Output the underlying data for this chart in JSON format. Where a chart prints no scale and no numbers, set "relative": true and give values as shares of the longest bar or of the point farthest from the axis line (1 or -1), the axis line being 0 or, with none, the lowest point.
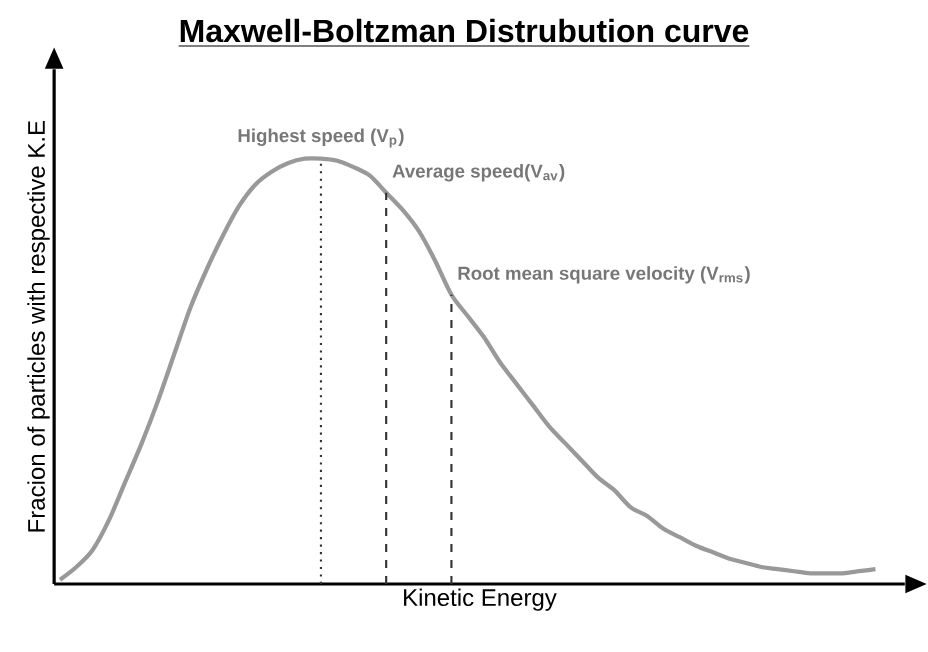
{
  "chart_data": {
    "type": "line",
    "title": "Maxwell-Boltzman Distrubution curve",
    "xlabel": "Kinetic Energy",
    "ylabel": "Fracion of particles with respective K.E",
    "relative": true,
    "categories": [
      null,
      null,
      null,
      null,
      null,
      null,
      null,
      null,
      null,
      null,
      null,
      null,
      null,
      null,
      null,
      null,
      null,
      null,
      null,
      null,
      null,
      null,
      null,
      null,
      null,
      null,
      null,
      null,
      null,
      null,
      null,
      null,
      null,
      null,
      null,
      null,
      null,
      null,
      null,
      null,
      null,
      null,
      null,
      null,
      null,
      null,
      null,
      null,
      null,
      null,
      null
    ],
    "series": [
      {
        "color": "#999999",
        "values": [
          0.01,
          0.04,
          0.08,
          0.15,
          0.24,
          0.33,
          0.43,
          0.54,
          0.65,
          0.74,
          0.82,
          0.89,
          0.94,
          0.97,
          0.99,
          1.0,
          1.0,
          0.995,
          0.98,
          0.96,
          0.92,
          0.88,
          0.83,
          0.76,
          0.68,
          0.63,
          0.58,
          0.52,
          0.47,
          0.42,
          0.37,
          0.33,
          0.29,
          0.25,
          0.22,
          0.18,
          0.16,
          0.13,
          0.11,
          0.09,
          0.075,
          0.06,
          0.05,
          0.04,
          0.035,
          0.03,
          0.025,
          0.025,
          0.025,
          0.03,
          0.035
        ]
      }
    ],
    "annotations": [
      "Highest speed (V$_{p}$)",
      "Average speed(V$_{av}$)",
      "Root mean square velocity (V$_{rms}$)"
    ]
  }
}
